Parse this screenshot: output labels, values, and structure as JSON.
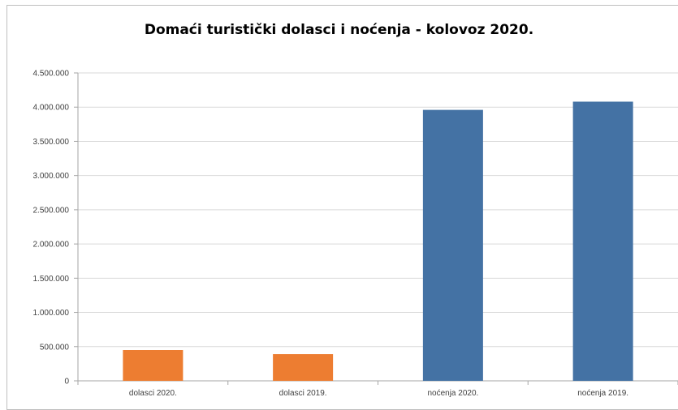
{
  "chart_data": {
    "type": "bar",
    "title": "Domaći turistički dolasci i noćenja - kolovoz 2020.",
    "xlabel": "",
    "ylabel": "",
    "categories": [
      "dolasci 2020.",
      "dolasci 2019.",
      "noćenja 2020.",
      "noćenja 2019."
    ],
    "values": [
      450000,
      390000,
      3960000,
      4080000
    ],
    "colors": [
      "#ED7D31",
      "#ED7D31",
      "#4472A4",
      "#4472A4"
    ],
    "ylim": [
      0,
      4500000
    ],
    "yticks": [
      0,
      500000,
      1000000,
      1500000,
      2000000,
      2500000,
      3000000,
      3500000,
      4000000,
      4500000
    ],
    "ytick_labels": [
      "0",
      "500.000",
      "1.000.000",
      "1.500.000",
      "2.000.000",
      "2.500.000",
      "3.000.000",
      "3.500.000",
      "4.000.000",
      "4.500.000"
    ],
    "grid": true,
    "legend": "none"
  }
}
